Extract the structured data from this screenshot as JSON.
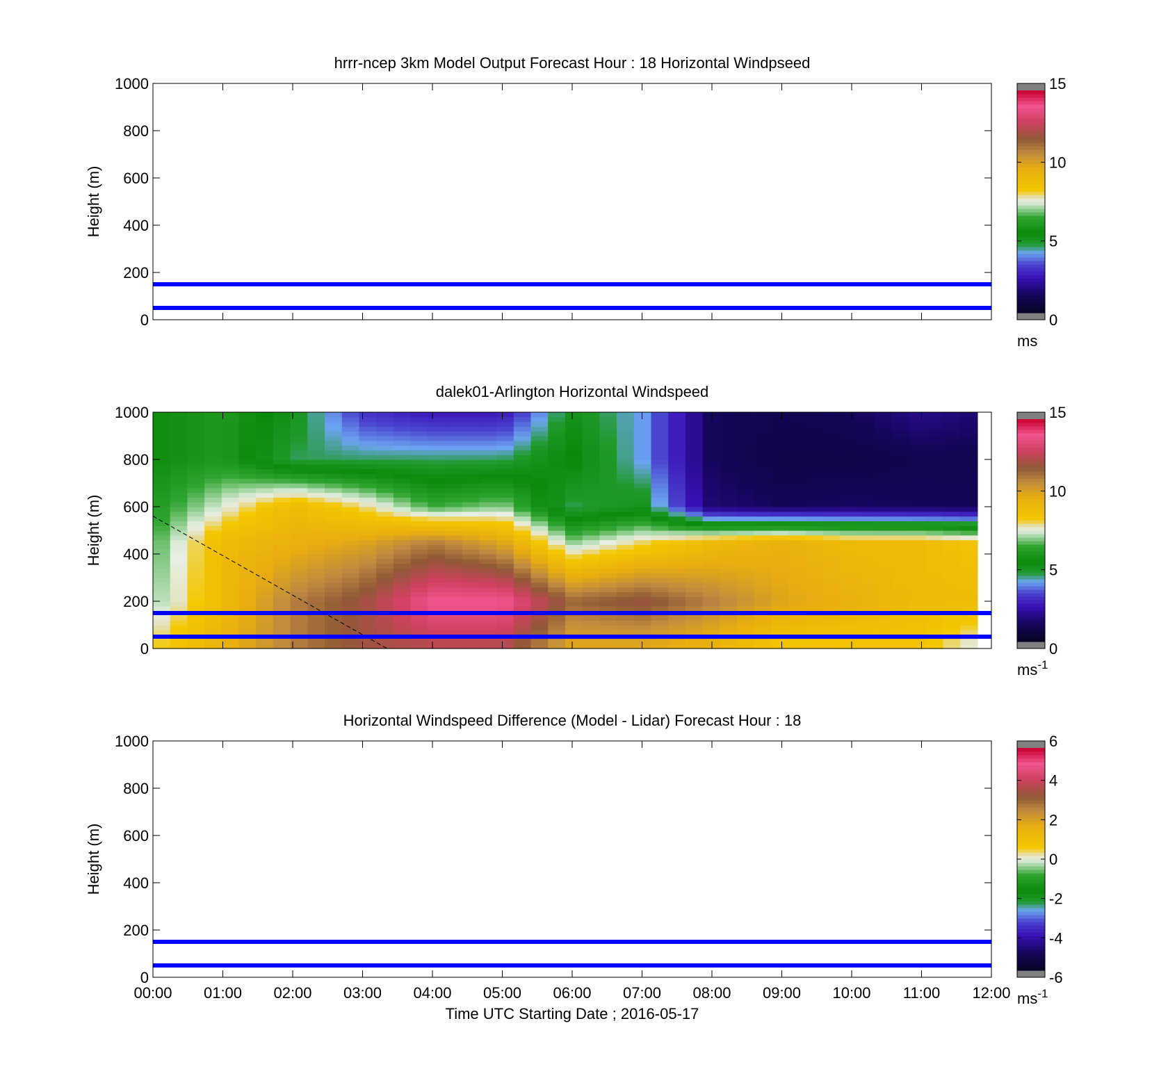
{
  "chart_data": [
    {
      "type": "heatmap",
      "title": "hrrr-ncep 3km Model Output   Forecast Hour : 18 Horizontal Windpseed",
      "xlabel": "",
      "ylabel": "Height (m)",
      "xlim": [
        0,
        12
      ],
      "ylim": [
        0,
        1000
      ],
      "yticks": [
        "0",
        "200",
        "400",
        "600",
        "800",
        "1000"
      ],
      "grid": false,
      "reference_lines_m": [
        50,
        150
      ],
      "reference_line_color": "#0000ff",
      "colorbar": {
        "min": 0,
        "max": 15,
        "ticks": [
          "0",
          "5",
          "10",
          "15"
        ],
        "unit": "ms",
        "unit_sup": "",
        "palette": "wind"
      },
      "field": null
    },
    {
      "type": "heatmap",
      "title": "dalek01-Arlington  Horizontal Windspeed",
      "xlabel": "",
      "ylabel": "Height (m)",
      "xlim": [
        0,
        12
      ],
      "ylim": [
        0,
        1000
      ],
      "yticks": [
        "0",
        "200",
        "400",
        "600",
        "800",
        "1000"
      ],
      "grid": false,
      "reference_lines_m": [
        50,
        150
      ],
      "reference_line_color": "#0000ff",
      "dashed_line": {
        "from": [
          0,
          560
        ],
        "to": [
          3.35,
          0
        ],
        "color": "#000000"
      },
      "colorbar": {
        "min": 0,
        "max": 15,
        "ticks": [
          "0",
          "5",
          "10",
          "15"
        ],
        "unit": "ms",
        "unit_sup": "-1",
        "palette": "wind"
      },
      "field": {
        "x_start": 0,
        "x_end": 11.8,
        "column_count": 48,
        "height_levels_m": [
          25,
          200,
          450,
          600,
          800,
          1000
        ],
        "time_keyframes_h": [
          0,
          1,
          2,
          3,
          4,
          5,
          6,
          7,
          8,
          9,
          10,
          11,
          11.8
        ],
        "speed_ms": [
          [
            8,
            9.5,
            11,
            12,
            12.5,
            12.5,
            10,
            10,
            9.5,
            8.5,
            8.5,
            8.5,
            7.5
          ],
          [
            7,
            9,
            11,
            12,
            14,
            14,
            11.5,
            12,
            11,
            10,
            9.5,
            9,
            9
          ],
          [
            6.5,
            9,
            9.5,
            10,
            11,
            10,
            7,
            8,
            9,
            9.5,
            9,
            9,
            8.5
          ],
          [
            6,
            7.5,
            9,
            8,
            6.5,
            7,
            4.5,
            5,
            1.5,
            1.2,
            1.3,
            1.2,
            1.2
          ],
          [
            5.5,
            6,
            4.5,
            4.5,
            4.5,
            4.5,
            5.5,
            4,
            1.2,
            0.8,
            0.8,
            1,
            1
          ],
          [
            5.5,
            6,
            5,
            3,
            2.5,
            2.5,
            5,
            4,
            1.2,
            1,
            1.2,
            1.8,
            1.5
          ]
        ]
      }
    },
    {
      "type": "heatmap",
      "title": "Horizontal Windspeed Difference (Model - Lidar) Forecast Hour : 18",
      "xlabel": "Time UTC  Starting Date ; 2016-05-17",
      "ylabel": "Height (m)",
      "xlim": [
        0,
        12
      ],
      "ylim": [
        0,
        1000
      ],
      "xticks": [
        "00:00",
        "01:00",
        "02:00",
        "03:00",
        "04:00",
        "05:00",
        "06:00",
        "07:00",
        "08:00",
        "09:00",
        "10:00",
        "11:00",
        "12:00"
      ],
      "yticks": [
        "0",
        "200",
        "400",
        "600",
        "800",
        "1000"
      ],
      "grid": false,
      "reference_lines_m": [
        50,
        150
      ],
      "reference_line_color": "#0000ff",
      "colorbar": {
        "min": -6,
        "max": 6,
        "ticks": [
          "-6",
          "-4",
          "-2",
          "0",
          "2",
          "4",
          "6"
        ],
        "unit": "ms",
        "unit_sup": "-1",
        "palette": "wind"
      },
      "field": null
    }
  ],
  "palette": {
    "under_over": "#808080",
    "stops": [
      [
        0.0,
        "#050522"
      ],
      [
        0.08,
        "#15055a"
      ],
      [
        0.16,
        "#3a10b8"
      ],
      [
        0.22,
        "#4a45cf"
      ],
      [
        0.27,
        "#6ba5f0"
      ],
      [
        0.31,
        "#1f9a2a"
      ],
      [
        0.36,
        "#0a8a0a"
      ],
      [
        0.43,
        "#30a530"
      ],
      [
        0.47,
        "#9ad29a"
      ],
      [
        0.5,
        "#e8f0e4"
      ],
      [
        0.52,
        "#e4e0b8"
      ],
      [
        0.55,
        "#f5c800"
      ],
      [
        0.65,
        "#e8ad10"
      ],
      [
        0.72,
        "#c08a40"
      ],
      [
        0.78,
        "#8f5a36"
      ],
      [
        0.86,
        "#d04060"
      ],
      [
        0.93,
        "#f2548e"
      ],
      [
        1.0,
        "#c80030"
      ]
    ]
  }
}
